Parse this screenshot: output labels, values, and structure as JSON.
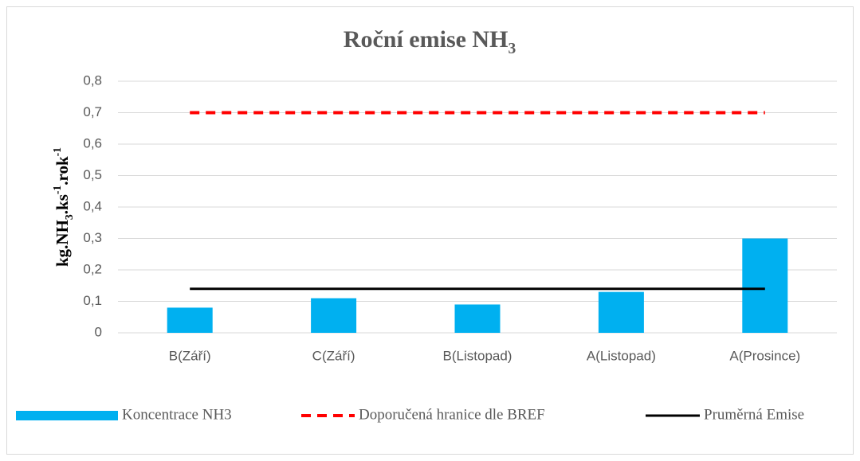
{
  "chart_data": {
    "type": "bar",
    "title": [
      {
        "text": "Roční emise NH"
      },
      {
        "text": "3",
        "sub": true
      }
    ],
    "y_label": [
      {
        "text": "kg.NH"
      },
      {
        "text": "3",
        "sub": true
      },
      {
        "text": ".ks"
      },
      {
        "text": "-1",
        "sup": true
      },
      {
        "text": ".rok"
      },
      {
        "text": "-1",
        "sup": true
      }
    ],
    "categories": [
      "B(Září)",
      "C(Září)",
      "B(Listopad)",
      "A(Listopad)",
      "A(Prosince)"
    ],
    "series": [
      {
        "name": "Koncentrace NH3",
        "type": "bar",
        "color": "#00b0f0",
        "values": [
          0.08,
          0.11,
          0.09,
          0.13,
          0.3
        ]
      },
      {
        "name": "Doporučená hranice dle BREF",
        "type": "line",
        "color": "#ff0000",
        "dashed": true,
        "values": [
          0.7,
          0.7,
          0.7,
          0.7,
          0.7
        ]
      },
      {
        "name": "Pruměrná Emise",
        "type": "line",
        "color": "#000000",
        "values": [
          0.14,
          0.14,
          0.14,
          0.14,
          0.14
        ]
      }
    ],
    "ylim": [
      0,
      0.8
    ],
    "yticks": [
      0,
      {
        "value": 0.1,
        "label": "0,1"
      },
      {
        "value": 0.2,
        "label": "0,2"
      },
      {
        "value": 0.3,
        "label": "0,3"
      },
      {
        "value": 0.4,
        "label": "0,4"
      },
      {
        "value": 0.5,
        "label": "0,5"
      },
      {
        "value": 0.6,
        "label": "0,6"
      },
      {
        "value": 0.7,
        "label": "0,7"
      },
      {
        "value": 0.8,
        "label": "0,8"
      }
    ],
    "grid": true,
    "legend": "bottom"
  }
}
